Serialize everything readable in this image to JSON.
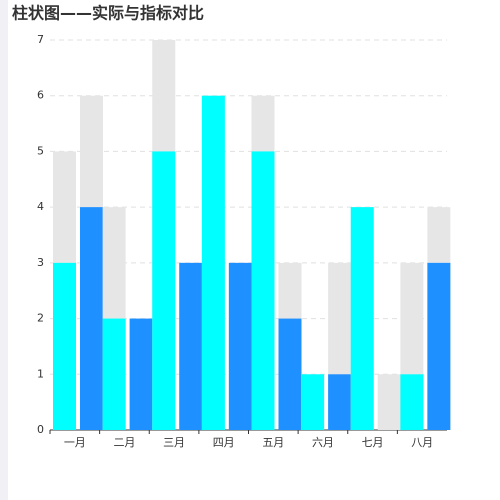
{
  "chart_data": {
    "type": "bar",
    "title": "柱状图——实际与指标对比",
    "categories": [
      "一月",
      "二月",
      "三月",
      "四月",
      "五月",
      "六月",
      "七月",
      "八月"
    ],
    "target_color": "#e6e6e6",
    "series": [
      {
        "color": "#00ffff",
        "values": [
          3,
          2,
          5,
          6,
          5,
          1,
          4,
          1
        ],
        "targets": [
          5,
          4,
          7,
          6,
          6,
          1,
          4,
          3
        ]
      },
      {
        "color": "#1e90ff",
        "values": [
          4,
          2,
          3,
          3,
          2,
          1,
          0,
          3
        ],
        "targets": [
          6,
          2,
          3,
          3,
          3,
          3,
          1,
          4
        ]
      }
    ],
    "ylim": [
      0,
      7
    ],
    "yticks": [
      0,
      1,
      2,
      3,
      4,
      5,
      6,
      7
    ],
    "grid": true
  }
}
